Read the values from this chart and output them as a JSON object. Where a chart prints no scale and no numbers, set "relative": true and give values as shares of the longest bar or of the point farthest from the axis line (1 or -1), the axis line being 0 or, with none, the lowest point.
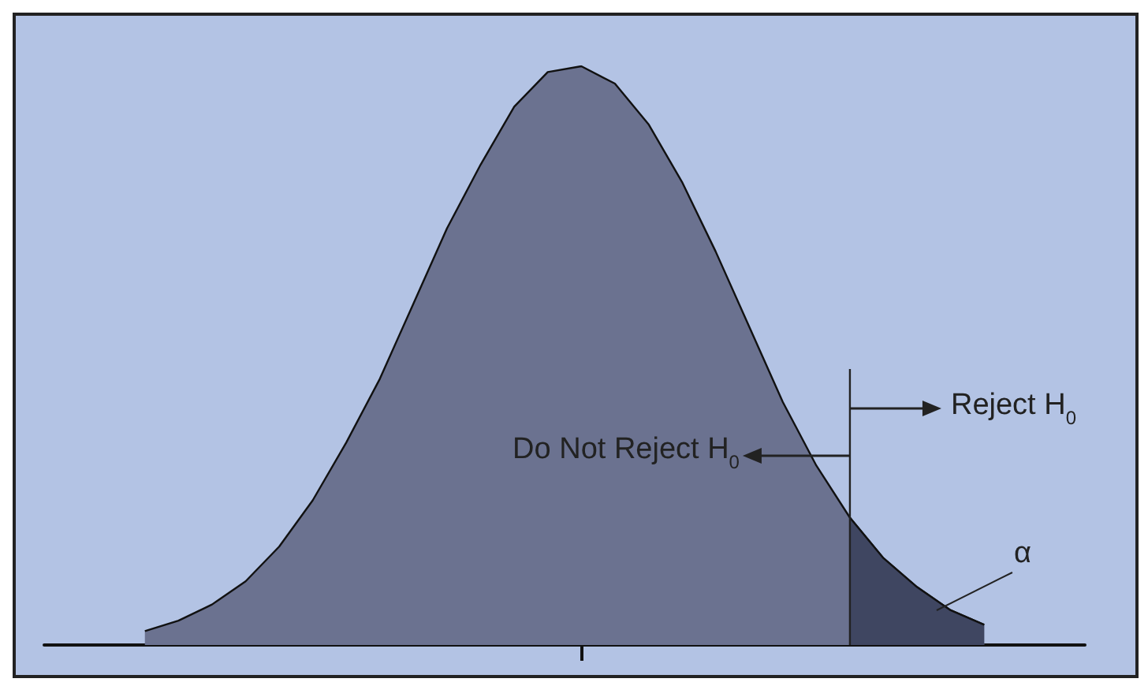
{
  "chart_data": {
    "type": "area",
    "relative": true,
    "categories": [
      null,
      null,
      null,
      null,
      null,
      null,
      null,
      null,
      null,
      null,
      null,
      null,
      null,
      null,
      null,
      null,
      null,
      null,
      null,
      null,
      null,
      null,
      null,
      null,
      null,
      null,
      null,
      null,
      null,
      null,
      null,
      null
    ],
    "series": [
      {
        "color": "#6b7290",
        "values": [
          null,
          null,
          null,
          0.024,
          0.042,
          0.07,
          0.11,
          0.17,
          0.25,
          0.35,
          0.46,
          0.59,
          0.72,
          0.83,
          0.93,
          0.99,
          1,
          0.97,
          0.9,
          0.8,
          0.68,
          0.55,
          0.42,
          0.31,
          0.22,
          0.15,
          0.1,
          0.06,
          0.035,
          null,
          null,
          null
        ]
      },
      {
        "color": "#3f4661",
        "values": [
          null,
          null,
          null,
          null,
          null,
          null,
          null,
          null,
          null,
          null,
          null,
          null,
          null,
          null,
          null,
          null,
          null,
          null,
          null,
          null,
          null,
          null,
          null,
          null,
          0.22,
          0.15,
          0.1,
          0.06,
          0.035,
          null,
          null,
          null
        ]
      }
    ],
    "annotations": [
      "Do Not Reject H$_{0}$",
      "Reject H$_{0}$",
      "α"
    ],
    "grid": false,
    "marker": "none"
  }
}
